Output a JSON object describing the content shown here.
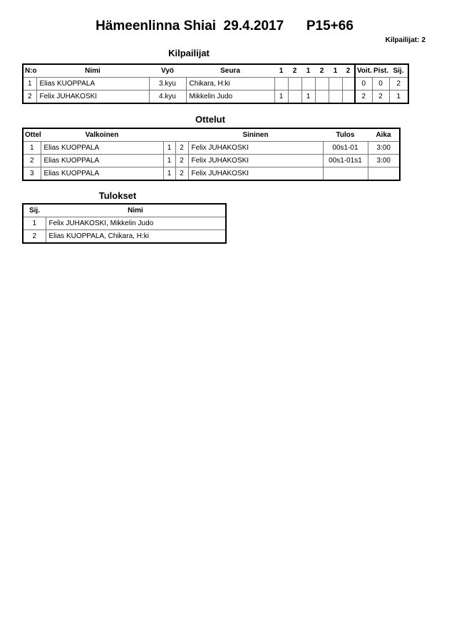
{
  "header": {
    "title": "Hämeenlinna Shiai",
    "date": "29.4.2017",
    "category": "P15+66",
    "count_label": "Kilpailijat:",
    "count": "2"
  },
  "kilpailijat": {
    "title": "Kilpailijat",
    "columns": [
      "N:o",
      "Nimi",
      "Vyö",
      "Seura",
      "1",
      "2",
      "1",
      "2",
      "1",
      "2",
      "Voit.",
      "Pist.",
      "Sij."
    ],
    "rows": [
      [
        "1",
        "Elias KUOPPALA",
        "3.kyu",
        "Chikara, H:ki",
        "",
        "",
        "",
        "",
        "",
        "",
        "0",
        "0",
        "2"
      ],
      [
        "2",
        "Felix JUHAKOSKI",
        "4.kyu",
        "Mikkelin Judo",
        "1",
        "",
        "1",
        "",
        "",
        "",
        "2",
        "2",
        "1"
      ]
    ]
  },
  "ottelut": {
    "title": "Ottelut",
    "columns": [
      "Ottelu",
      "Valkoinen",
      "",
      "",
      "Sininen",
      "Tulos",
      "Aika"
    ],
    "rows": [
      [
        "1",
        "Elias KUOPPALA",
        "1",
        "2",
        "Felix JUHAKOSKI",
        "00s1-01",
        "3:00"
      ],
      [
        "2",
        "Elias KUOPPALA",
        "1",
        "2",
        "Felix JUHAKOSKI",
        "00s1-01s1",
        "3:00"
      ],
      [
        "3",
        "Elias KUOPPALA",
        "1",
        "2",
        "Felix JUHAKOSKI",
        "",
        ""
      ]
    ]
  },
  "tulokset": {
    "title": "Tulokset",
    "columns": [
      "Sij.",
      "Nimi"
    ],
    "rows": [
      [
        "1",
        "Felix JUHAKOSKI, Mikkelin Judo"
      ],
      [
        "2",
        "Elias KUOPPALA, Chikara, H:ki"
      ]
    ]
  }
}
